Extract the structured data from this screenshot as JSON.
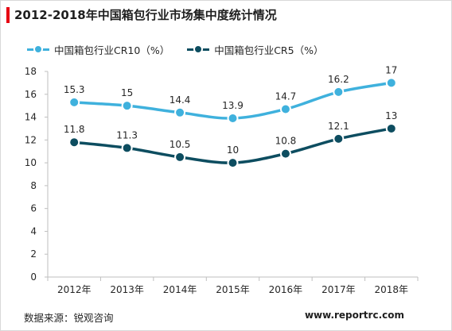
{
  "title": "2012-2018年中国箱包行业市场集中度统计情况",
  "source": "数据来源：锐观咨询",
  "website": "www.reportrc.com",
  "colors": {
    "accent": "#e60012",
    "series_light": "#3fb1dd",
    "series_dark": "#0d4d60",
    "axis": "#bfbfbf",
    "text": "#262626"
  },
  "chart_data": {
    "type": "line",
    "categories": [
      "2012年",
      "2013年",
      "2014年",
      "2015年",
      "2016年",
      "2017年",
      "2018年"
    ],
    "series": [
      {
        "name": "中国箱包行业CR10（%）",
        "values": [
          15.3,
          15,
          14.4,
          13.9,
          14.7,
          16.2,
          17
        ],
        "labels": [
          "15.3",
          "15",
          "14.4",
          "13.9",
          "14.7",
          "16.2",
          "17"
        ],
        "color": "#3fb1dd"
      },
      {
        "name": "中国箱包行业CR5（%）",
        "values": [
          11.8,
          11.3,
          10.5,
          10,
          10.8,
          12.1,
          13
        ],
        "labels": [
          "11.8",
          "11.3",
          "10.5",
          "10",
          "10.8",
          "12.1",
          "13"
        ],
        "color": "#0d4d60"
      }
    ],
    "ylim": [
      0,
      18
    ],
    "yticks": [
      0,
      2,
      4,
      6,
      8,
      10,
      12,
      14,
      16,
      18
    ],
    "grid": false,
    "legend": "top-left",
    "smooth": true
  }
}
